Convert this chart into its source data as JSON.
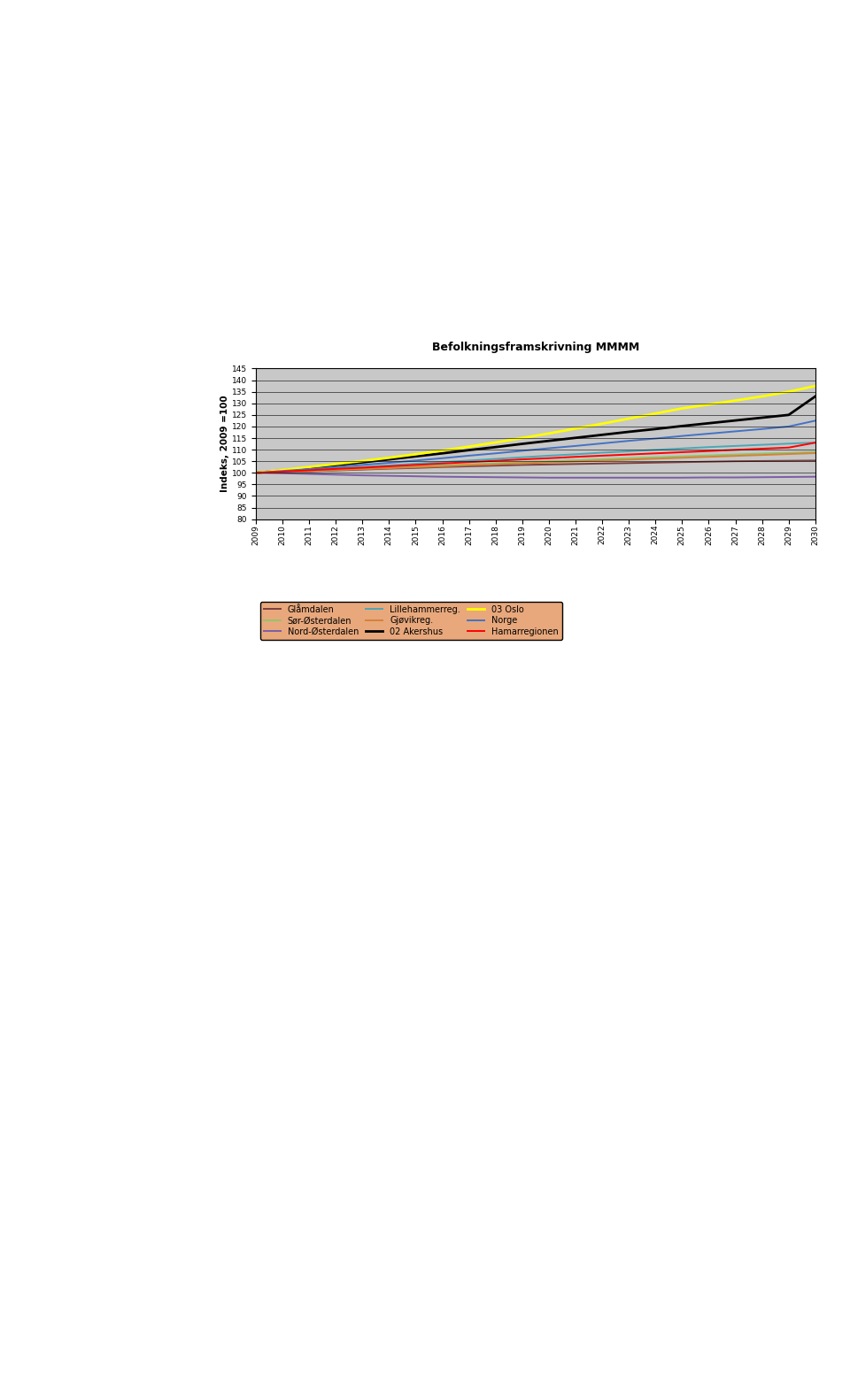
{
  "title": "Befolkningsframskrivning MMMM",
  "ylabel": "Indeks, 2009 =100",
  "years": [
    2009,
    2010,
    2011,
    2012,
    2013,
    2014,
    2015,
    2016,
    2017,
    2018,
    2019,
    2020,
    2021,
    2022,
    2023,
    2024,
    2025,
    2026,
    2027,
    2028,
    2029,
    2030
  ],
  "ylim": [
    80,
    145
  ],
  "yticks": [
    80,
    85,
    90,
    95,
    100,
    105,
    110,
    115,
    120,
    125,
    130,
    135,
    140,
    145
  ],
  "series": [
    {
      "name": "Glåmdalen",
      "color": "#7B3F3F",
      "values": [
        100,
        100.3,
        100.6,
        101.0,
        101.4,
        101.8,
        102.1,
        102.5,
        102.8,
        103.1,
        103.4,
        103.6,
        103.8,
        104.0,
        104.2,
        104.4,
        104.6,
        104.8,
        105.0,
        105.1,
        105.2,
        105.3
      ]
    },
    {
      "name": "Sør-Østerdalen",
      "color": "#92C46A",
      "values": [
        100,
        100.4,
        100.8,
        101.3,
        101.8,
        102.2,
        102.7,
        103.2,
        103.7,
        104.1,
        104.6,
        105.0,
        105.4,
        105.9,
        106.3,
        106.7,
        107.1,
        107.5,
        107.9,
        108.3,
        108.6,
        109.0
      ]
    },
    {
      "name": "Nord-Østerdalen",
      "color": "#7B5EA7",
      "values": [
        100,
        99.8,
        99.5,
        99.2,
        98.9,
        98.7,
        98.5,
        98.3,
        98.2,
        98.1,
        98.0,
        97.9,
        97.9,
        97.9,
        97.9,
        97.9,
        97.9,
        98.0,
        98.0,
        98.1,
        98.2,
        98.3
      ]
    },
    {
      "name": "Lillehammerreg.",
      "color": "#4DA6B5",
      "values": [
        100,
        100.6,
        101.2,
        101.9,
        102.5,
        103.2,
        103.9,
        104.6,
        105.3,
        106.0,
        106.7,
        107.4,
        108.0,
        108.7,
        109.3,
        109.9,
        110.5,
        111.1,
        111.6,
        112.1,
        112.6,
        113.1
      ]
    },
    {
      "name": "Gjøvikreg.",
      "color": "#D4823A",
      "values": [
        100,
        100.4,
        100.8,
        101.2,
        101.6,
        102.0,
        102.4,
        102.8,
        103.3,
        103.7,
        104.1,
        104.5,
        104.9,
        105.3,
        105.7,
        106.1,
        106.5,
        106.9,
        107.3,
        107.7,
        108.1,
        108.5
      ]
    },
    {
      "name": "02 Akershus",
      "color": "#000000",
      "values": [
        100,
        101.0,
        102.1,
        103.3,
        104.5,
        105.8,
        107.1,
        108.4,
        109.8,
        111.1,
        112.5,
        113.8,
        115.1,
        116.4,
        117.7,
        118.9,
        120.2,
        121.4,
        122.6,
        123.8,
        125.0,
        133.0
      ]
    },
    {
      "name": "03 Oslo",
      "color": "#FFFF00",
      "values": [
        100,
        101.2,
        102.5,
        103.8,
        105.1,
        106.5,
        108.0,
        109.6,
        111.3,
        113.1,
        115.0,
        117.0,
        119.1,
        121.2,
        123.4,
        125.6,
        127.8,
        129.5,
        131.2,
        133.0,
        135.0,
        137.5
      ]
    },
    {
      "name": "Norge",
      "color": "#4472C4",
      "values": [
        100,
        100.8,
        101.6,
        102.5,
        103.4,
        104.3,
        105.3,
        106.3,
        107.4,
        108.4,
        109.5,
        110.6,
        111.6,
        112.7,
        113.8,
        114.8,
        115.9,
        116.9,
        117.9,
        118.9,
        120.0,
        122.5
      ]
    },
    {
      "name": "Hamarregionen",
      "color": "#FF0000",
      "values": [
        100,
        100.5,
        101.1,
        101.7,
        102.2,
        102.8,
        103.4,
        104.0,
        104.6,
        105.2,
        105.8,
        106.3,
        106.9,
        107.4,
        107.9,
        108.4,
        108.9,
        109.4,
        109.9,
        110.4,
        110.9,
        113.0
      ]
    }
  ],
  "page_bg": "#FFFFFF",
  "chart_outer_bg": "#E8A87C",
  "plot_bg_color": "#C8C8C8",
  "title_fontsize": 9,
  "axis_fontsize": 7.5,
  "tick_fontsize": 6.5,
  "legend_fontsize": 7,
  "legend_order": [
    [
      "Glåmdalen",
      "Sør-Østerdalen",
      "Nord-Østerdalen"
    ],
    [
      "Lillehammerreg.",
      "Gjøvikreg.",
      "02 Akershus"
    ],
    [
      "03 Oslo",
      "Norge",
      "Hamarregionen"
    ]
  ]
}
